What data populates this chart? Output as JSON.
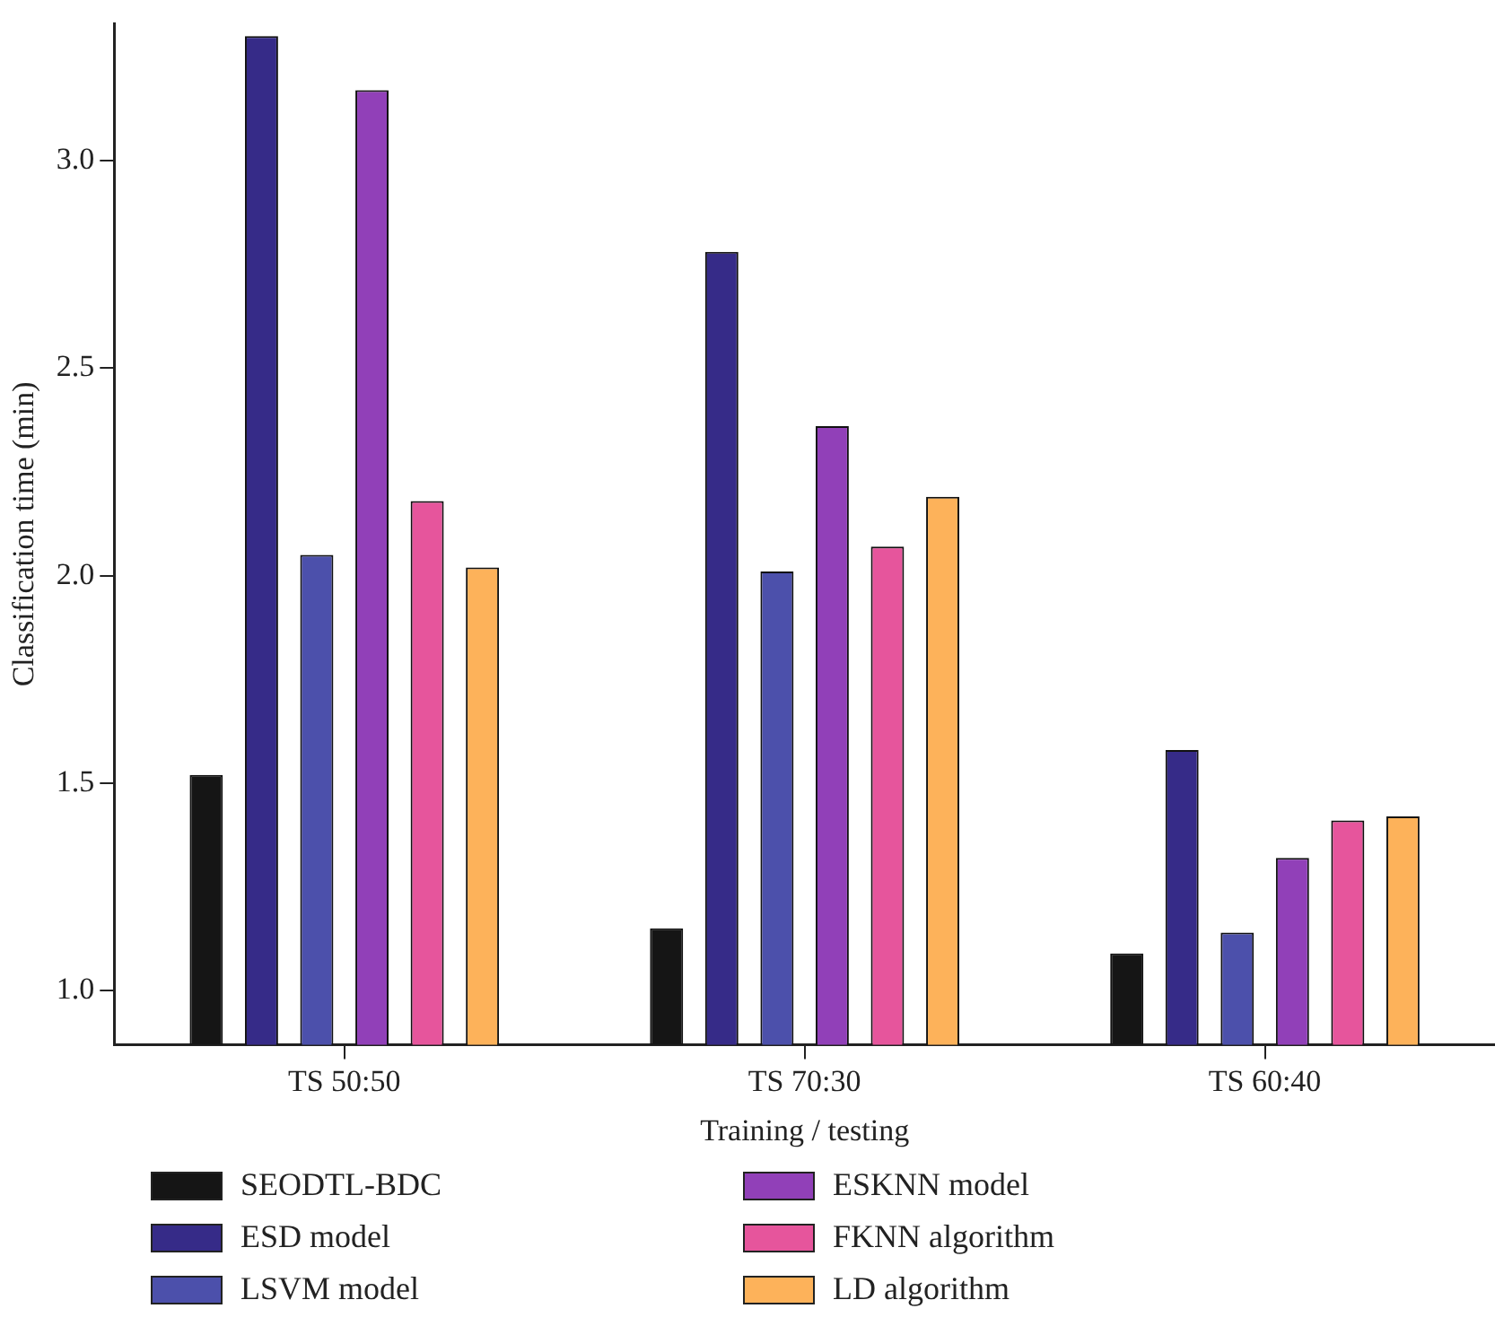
{
  "chart_data": {
    "type": "bar",
    "xlabel": "Training / testing",
    "ylabel": "Classification time (min)",
    "categories": [
      "TS 50:50",
      "TS 70:30",
      "TS 60:40"
    ],
    "series": [
      {
        "name": "SEODTL-BDC",
        "color": "#151515",
        "values": [
          1.52,
          1.15,
          1.09
        ]
      },
      {
        "name": "ESD model",
        "color": "#362b88",
        "values": [
          3.3,
          2.78,
          1.58
        ]
      },
      {
        "name": "LSVM model",
        "color": "#4c50ab",
        "values": [
          2.05,
          2.01,
          1.14
        ]
      },
      {
        "name": "ESKNN model",
        "color": "#9140b8",
        "values": [
          3.17,
          2.36,
          1.32
        ]
      },
      {
        "name": "FKNN algorithm",
        "color": "#e6559c",
        "values": [
          2.18,
          2.07,
          1.41
        ]
      },
      {
        "name": "LD algorithm",
        "color": "#fdb25a",
        "values": [
          2.02,
          2.19,
          1.42
        ]
      }
    ],
    "ylim": [
      0.87,
      3.33
    ],
    "yticks": [
      {
        "value": 1,
        "label": "1.0"
      },
      {
        "value": 1.5,
        "label": "1.5"
      },
      {
        "value": 2,
        "label": "2.0"
      },
      {
        "value": 2.5,
        "label": "2.5"
      },
      {
        "value": 3,
        "label": "3.0"
      }
    ],
    "grid": false,
    "legend": "bottom"
  }
}
